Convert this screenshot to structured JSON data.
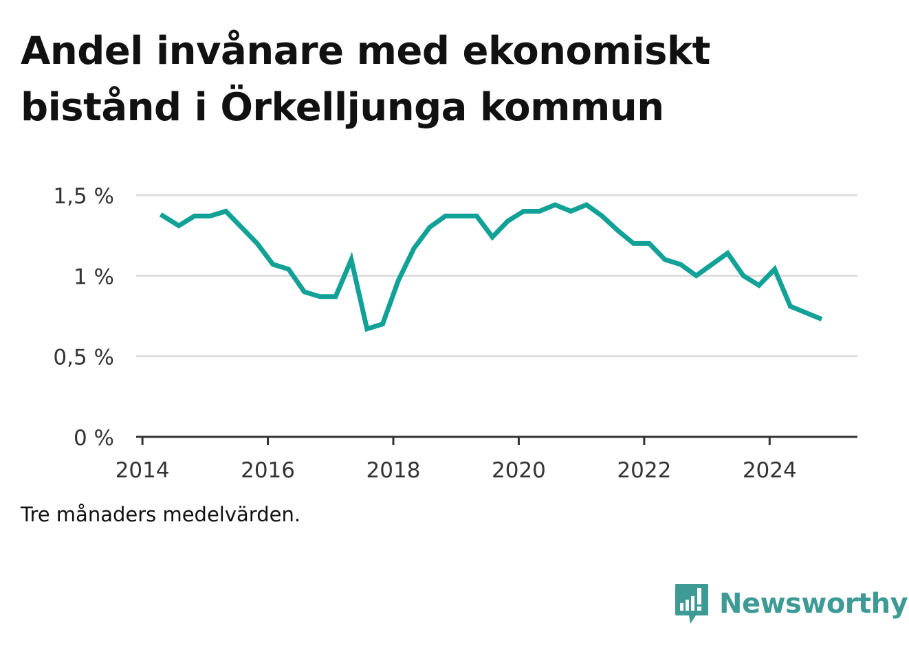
{
  "title": "Andel invånare med ekonomiskt bistånd i Örkelljunga kommun",
  "note": "Tre månaders medelvärden.",
  "brand": {
    "name": "Newsworthy",
    "color": "#3d9a95",
    "icon": "newsworthy-logo-icon"
  },
  "chart_data": {
    "type": "line",
    "title": "Andel invånare med ekonomiskt bistånd i Örkelljunga kommun",
    "xlabel": "",
    "ylabel": "",
    "line_color": "#12a197",
    "grid": true,
    "xlim": [
      2013.9,
      2025.4
    ],
    "ylim": [
      0,
      1.5
    ],
    "x_ticks": [
      2014,
      2016,
      2018,
      2020,
      2022,
      2024
    ],
    "x_tick_labels": [
      "2014",
      "2016",
      "2018",
      "2020",
      "2022",
      "2024"
    ],
    "y_ticks": [
      0,
      0.5,
      1,
      1.5
    ],
    "y_tick_labels": [
      "0 %",
      "0,5 %",
      "1 %",
      "1,5 %"
    ],
    "x": [
      2014.29,
      2014.58,
      2014.83,
      2015.08,
      2015.33,
      2015.58,
      2015.83,
      2016.08,
      2016.33,
      2016.58,
      2016.83,
      2017.08,
      2017.33,
      2017.58,
      2017.83,
      2018.08,
      2018.33,
      2018.58,
      2018.83,
      2019.08,
      2019.33,
      2019.58,
      2019.83,
      2020.08,
      2020.33,
      2020.58,
      2020.83,
      2021.08,
      2021.33,
      2021.58,
      2021.83,
      2022.08,
      2022.33,
      2022.58,
      2022.83,
      2023.08,
      2023.33,
      2023.58,
      2023.83,
      2024.08,
      2024.33,
      2024.58,
      2024.83
    ],
    "values": [
      1.38,
      1.31,
      1.37,
      1.37,
      1.4,
      1.3,
      1.2,
      1.07,
      1.04,
      0.9,
      0.87,
      0.87,
      1.1,
      0.67,
      0.7,
      0.97,
      1.17,
      1.3,
      1.37,
      1.37,
      1.37,
      1.24,
      1.34,
      1.4,
      1.4,
      1.44,
      1.4,
      1.44,
      1.37,
      1.28,
      1.2,
      1.2,
      1.1,
      1.07,
      1.0,
      1.07,
      1.14,
      1.0,
      0.94,
      1.04,
      0.81,
      0.77,
      0.73
    ]
  }
}
